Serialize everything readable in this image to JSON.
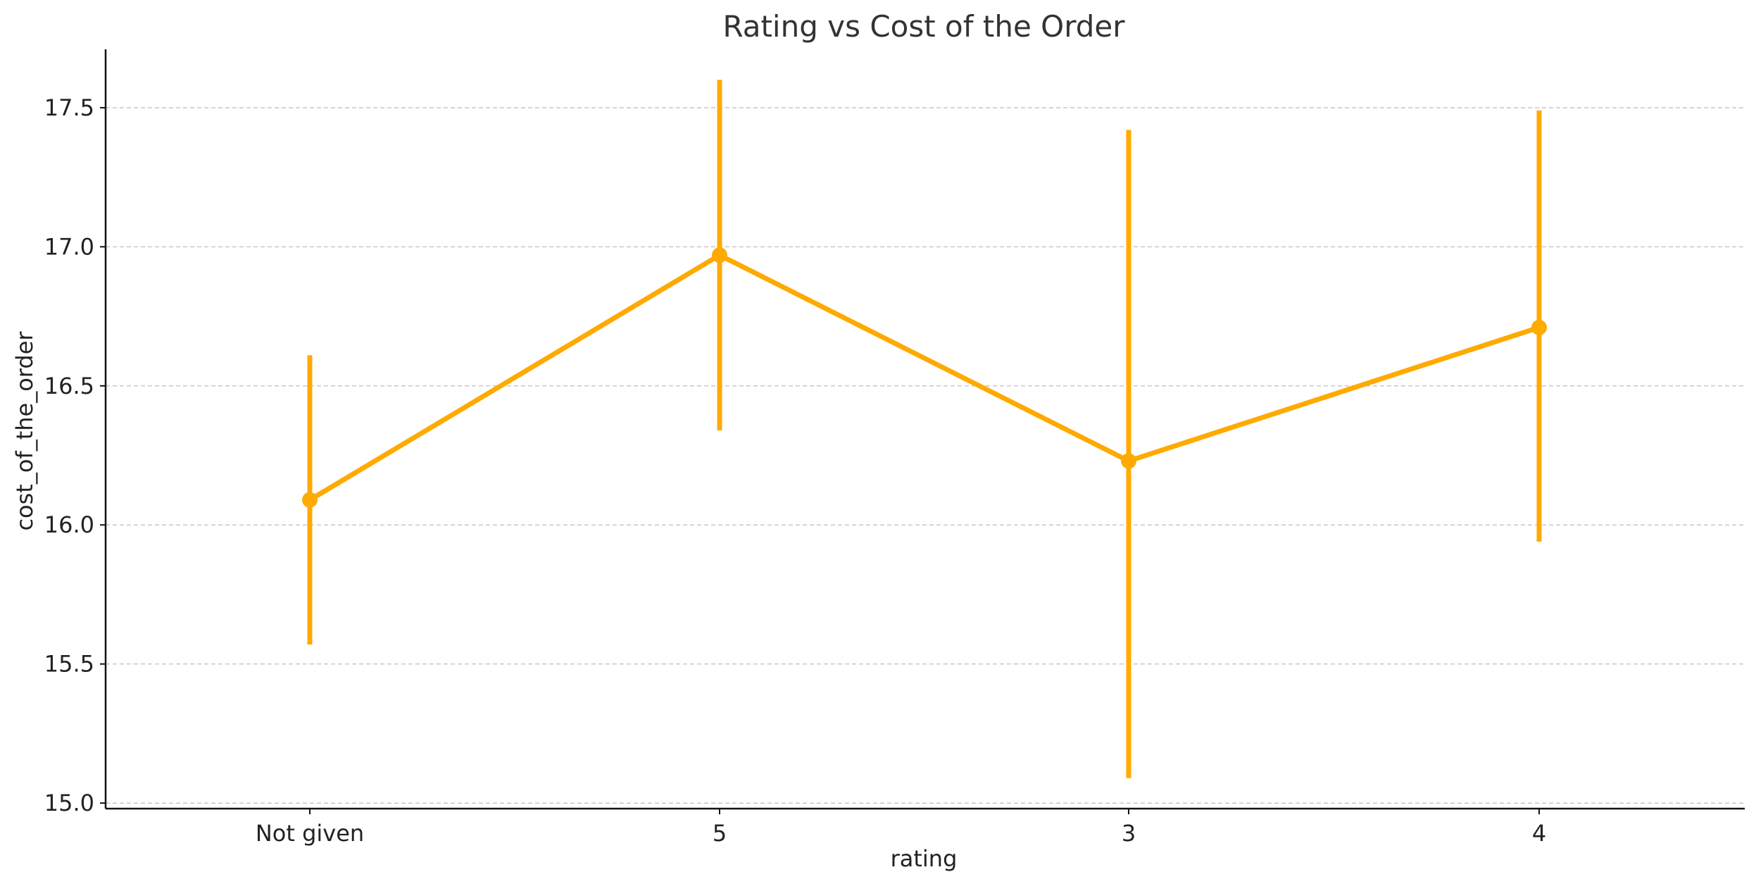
{
  "chart_data": {
    "type": "line",
    "title": "Rating vs Cost of the Order",
    "xlabel": "rating",
    "ylabel": "cost_of_the_order",
    "categories": [
      "Not given",
      "5",
      "3",
      "4"
    ],
    "series": [
      {
        "values": [
          16.09,
          16.97,
          16.23,
          16.71
        ],
        "error_low": [
          15.57,
          16.34,
          15.09,
          15.94
        ],
        "error_high": [
          16.61,
          17.6,
          17.42,
          17.49
        ]
      }
    ],
    "ylim": [
      14.98,
      17.71
    ],
    "yticks": [
      "15.0",
      "15.5",
      "16.0",
      "16.5",
      "17.0",
      "17.5"
    ],
    "grid": "horizontal dashed",
    "color": "#FFAA00"
  }
}
